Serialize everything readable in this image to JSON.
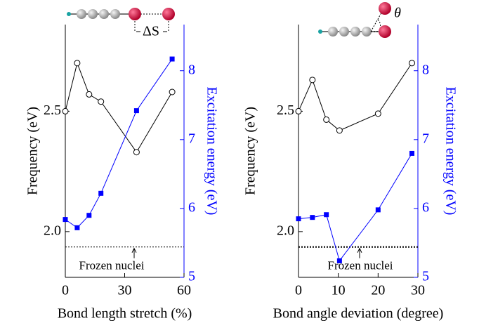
{
  "chart_data": [
    {
      "type": "line",
      "x_label": "Bond length stretch (%)",
      "y_label": "Frequency (eV)",
      "y2_label": "Excitation energy (eV)",
      "inset_label": "ΔS",
      "xlim": [
        0,
        60
      ],
      "xticks": [
        0,
        30,
        60
      ],
      "ylim": [
        1.81,
        2.86
      ],
      "yticks": [
        {
          "value": 2,
          "label": "2.0"
        },
        2.5
      ],
      "y2lim": [
        5,
        8.67
      ],
      "y2ticks": [
        5,
        6,
        7,
        8
      ],
      "x": [
        0,
        6,
        12,
        18,
        36,
        54
      ],
      "series": [
        {
          "color": "#000000",
          "marker": "circle",
          "axis": "y",
          "values": [
            2.5,
            2.7,
            2.57,
            2.54,
            2.33,
            2.58
          ]
        },
        {
          "color": "#0000ff",
          "marker": "square",
          "axis": "y2",
          "values": [
            5.84,
            5.72,
            5.9,
            6.22,
            7.42,
            8.17
          ]
        }
      ],
      "reference_line": {
        "value": 1.936,
        "label": "Frozen nuclei"
      }
    },
    {
      "type": "line",
      "x_label": "Bond angle deviation (degree)",
      "y_label": "Frequency (eV)",
      "y2_label": "Excitation energy (eV)",
      "inset_label": "θ",
      "xlim": [
        0,
        30
      ],
      "xticks": [
        0,
        10,
        20,
        30
      ],
      "ylim": [
        1.81,
        2.86
      ],
      "yticks": [
        {
          "value": 2,
          "label": "2.0"
        },
        2.5
      ],
      "y2lim": [
        5,
        8.67
      ],
      "y2ticks": [
        5,
        6,
        7,
        8
      ],
      "x": [
        0,
        3.5,
        7,
        10.3,
        20,
        28.5
      ],
      "series": [
        {
          "color": "#000000",
          "marker": "circle",
          "axis": "y",
          "values": [
            2.5,
            2.63,
            2.465,
            2.42,
            2.49,
            2.7
          ]
        },
        {
          "color": "#0000ff",
          "marker": "square",
          "axis": "y2",
          "values": [
            5.85,
            5.87,
            5.91,
            5.24,
            5.98,
            6.8
          ]
        }
      ],
      "reference_line": {
        "value": 1.936,
        "label": "Frozen nuclei"
      }
    }
  ]
}
